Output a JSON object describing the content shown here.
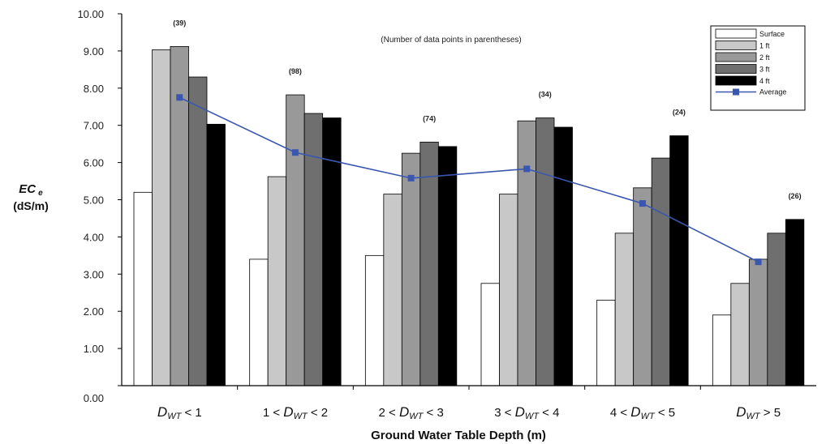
{
  "chart_data": {
    "type": "bar",
    "note": "(Number of data points in parentheses)",
    "xlabel": "Ground Water Table Depth (m)",
    "ylabel_main": "EC",
    "ylabel_sub": "e",
    "ylabel_unit": "(dS/m)",
    "ylim": [
      0,
      10
    ],
    "yticks": [
      "0.00",
      "1.00",
      "2.00",
      "3.00",
      "4.00",
      "5.00",
      "6.00",
      "7.00",
      "8.00",
      "9.00",
      "10.00"
    ],
    "categories": [
      {
        "pre": "",
        "var": "D",
        "sub": "WT",
        "post": " < 1"
      },
      {
        "pre": "1 <  ",
        "var": "D",
        "sub": "WT",
        "post": "  < 2"
      },
      {
        "pre": "2 <  ",
        "var": "D",
        "sub": "WT",
        "post": "  < 3"
      },
      {
        "pre": "3 < ",
        "var": "D",
        "sub": "WT",
        "post": " < 4"
      },
      {
        "pre": "4 < ",
        "var": "D",
        "sub": "WT",
        "post": " < 5"
      },
      {
        "pre": "",
        "var": "D",
        "sub": "WT",
        "post": " > 5"
      }
    ],
    "counts": [
      "(39)",
      "(98)",
      "(74)",
      "(34)",
      "(24)",
      "(26)"
    ],
    "series": [
      {
        "name": "Surface",
        "color": "#ffffff",
        "values": [
          5.2,
          3.4,
          3.5,
          2.75,
          2.3,
          1.9
        ]
      },
      {
        "name": "1 ft",
        "color": "#c8c8c8",
        "values": [
          9.03,
          5.62,
          5.15,
          5.15,
          4.1,
          2.75
        ]
      },
      {
        "name": "2 ft",
        "color": "#999999",
        "values": [
          9.12,
          7.82,
          6.25,
          7.12,
          5.32,
          3.4
        ]
      },
      {
        "name": "3 ft",
        "color": "#6f6f6f",
        "values": [
          8.3,
          7.32,
          6.55,
          7.2,
          6.12,
          4.1
        ]
      },
      {
        "name": "4 ft",
        "color": "#000000",
        "values": [
          7.03,
          7.2,
          6.43,
          6.95,
          6.72,
          4.47
        ]
      }
    ],
    "average": {
      "name": "Average",
      "color": "#3a57b0",
      "values": [
        7.75,
        6.27,
        5.58,
        5.83,
        4.9,
        3.33
      ]
    },
    "legend_position": "top-right"
  }
}
